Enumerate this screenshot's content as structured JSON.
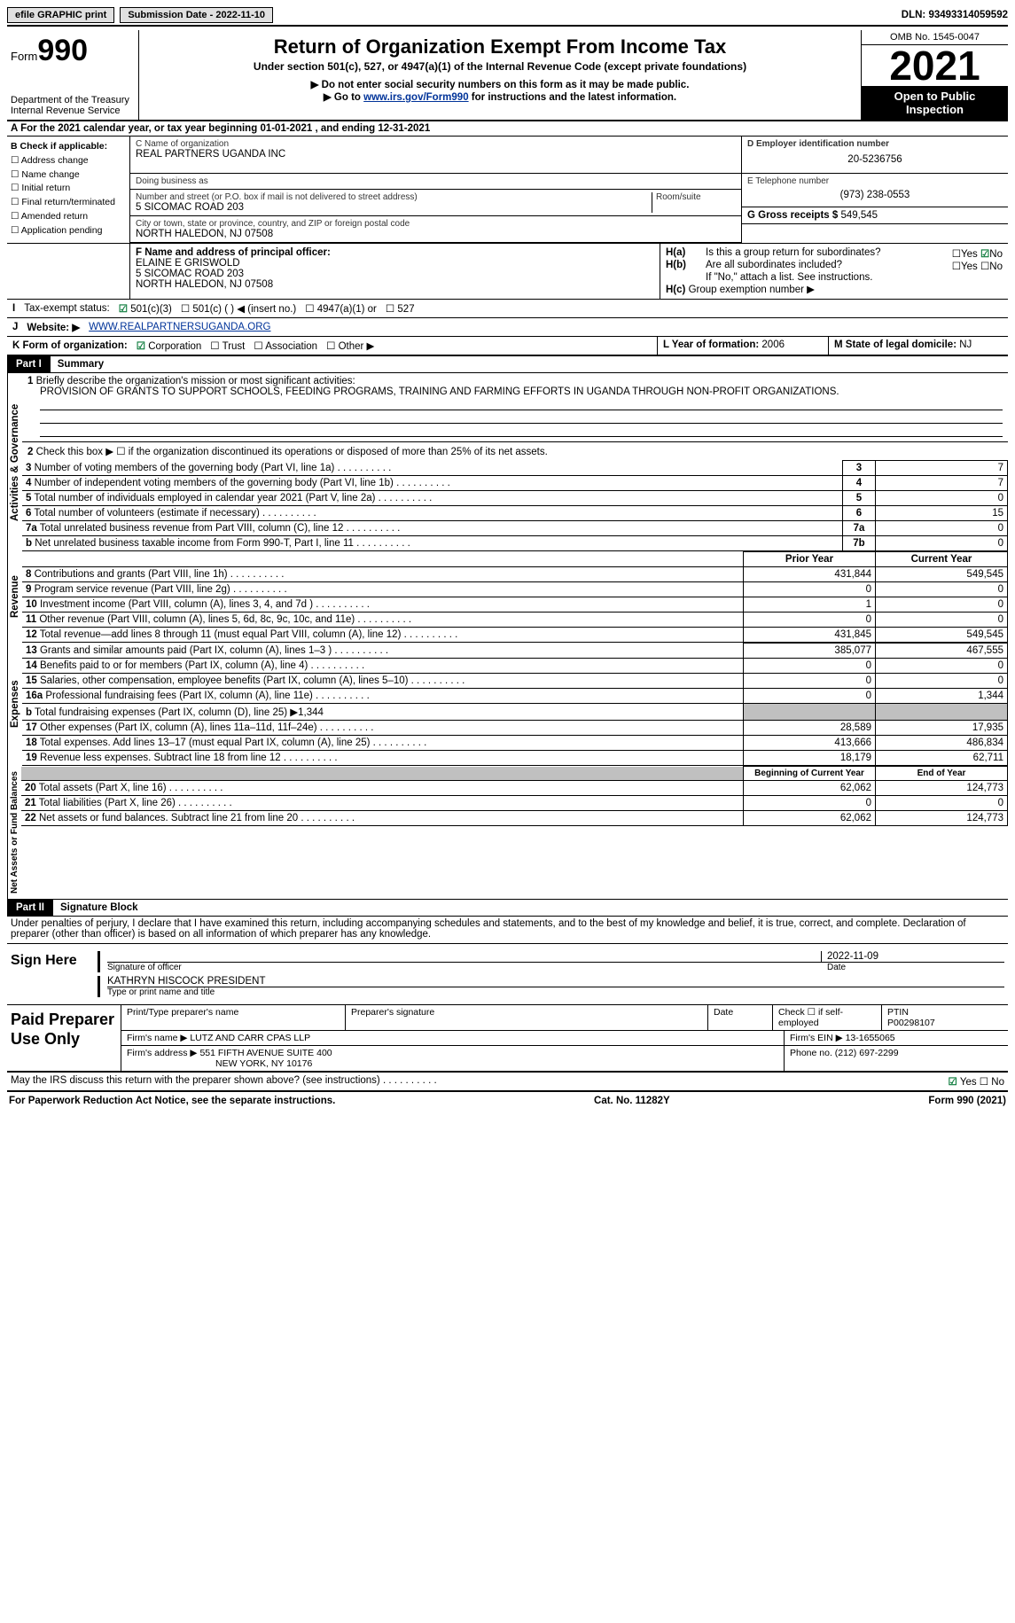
{
  "topbar": {
    "efile": "efile GRAPHIC",
    "print": "print",
    "sub_label": "Submission Date - ",
    "sub_date": "2022-11-10",
    "dln_label": "DLN: ",
    "dln": "93493314059592"
  },
  "header": {
    "form_prefix": "Form",
    "form_num": "990",
    "dept": "Department of the Treasury",
    "irs": "Internal Revenue Service",
    "title": "Return of Organization Exempt From Income Tax",
    "sub1": "Under section 501(c), 527, or 4947(a)(1) of the Internal Revenue Code (except private foundations)",
    "sub2": "▶ Do not enter social security numbers on this form as it may be made public.",
    "sub3a": "▶ Go to ",
    "sub3_link": "www.irs.gov/Form990",
    "sub3b": " for instructions and the latest information.",
    "omb": "OMB No. 1545-0047",
    "year": "2021",
    "open": "Open to Public Inspection"
  },
  "rowA": {
    "text_a": "A For the 2021 calendar year, or tax year beginning ",
    "begin": "01-01-2021",
    "mid": " , and ending ",
    "end": "12-31-2021"
  },
  "colB": {
    "hdr": "B Check if applicable:",
    "items": [
      "Address change",
      "Name change",
      "Initial return",
      "Final return/terminated",
      "Amended return",
      "Application pending"
    ]
  },
  "colC": {
    "name_lbl": "C Name of organization",
    "name": "REAL PARTNERS UGANDA INC",
    "dba_lbl": "Doing business as",
    "dba": "",
    "addr_lbl": "Number and street (or P.O. box if mail is not delivered to street address)",
    "room_lbl": "Room/suite",
    "addr": "5 SICOMAC ROAD 203",
    "city_lbl": "City or town, state or province, country, and ZIP or foreign postal code",
    "city": "NORTH HALEDON, NJ  07508"
  },
  "colDE": {
    "d_lbl": "D Employer identification number",
    "ein": "20-5236756",
    "e_lbl": "E Telephone number",
    "phone": "(973) 238-0553",
    "g_lbl": "G Gross receipts $ ",
    "gross": "549,545"
  },
  "boxF": {
    "lbl": "F Name and address of principal officer:",
    "l1": "ELAINE E GRISWOLD",
    "l2": "5 SICOMAC ROAD 203",
    "l3": "NORTH HALEDON, NJ  07508"
  },
  "boxH": {
    "ha": "Is this a group return for subordinates?",
    "ha_yes": "Yes",
    "ha_no": "No",
    "hb": "Are all subordinates included?",
    "hb_yes": "Yes",
    "hb_no": "No",
    "hb_note": "If \"No,\" attach a list. See instructions.",
    "hc": "Group exemption number ▶"
  },
  "rowI": {
    "lbl": "I",
    "text": "Tax-exempt status:",
    "o1": "501(c)(3)",
    "o2": "501(c) (  ) ◀ (insert no.)",
    "o3": "4947(a)(1) or",
    "o4": "527"
  },
  "rowJ": {
    "lbl": "J",
    "text": "Website: ▶",
    "url": "WWW.REALPARTNERSUGANDA.ORG"
  },
  "rowK": {
    "lbl": "K Form of organization:",
    "o1": "Corporation",
    "o2": "Trust",
    "o3": "Association",
    "o4": "Other ▶",
    "l_lbl": "L Year of formation: ",
    "l_val": "2006",
    "m_lbl": "M State of legal domicile: ",
    "m_val": "NJ"
  },
  "part1": {
    "num": "Part I",
    "title": "Summary"
  },
  "vert1": "Activities & Governance",
  "vert2": "Revenue",
  "vert3": "Expenses",
  "vert4": "Net Assets or Fund Balances",
  "l1": {
    "n": "1",
    "t": "Briefly describe the organization's mission or most significant activities:",
    "v": "PROVISION OF GRANTS TO SUPPORT SCHOOLS, FEEDING PROGRAMS, TRAINING AND FARMING EFFORTS IN UGANDA THROUGH NON-PROFIT ORGANIZATIONS."
  },
  "l2": {
    "n": "2",
    "t": "Check this box ▶ ☐ if the organization discontinued its operations or disposed of more than 25% of its net assets."
  },
  "lines_gov": [
    {
      "n": "3",
      "t": "Number of voting members of the governing body (Part VI, line 1a)",
      "box": "3",
      "v": "7"
    },
    {
      "n": "4",
      "t": "Number of independent voting members of the governing body (Part VI, line 1b)",
      "box": "4",
      "v": "7"
    },
    {
      "n": "5",
      "t": "Total number of individuals employed in calendar year 2021 (Part V, line 2a)",
      "box": "5",
      "v": "0"
    },
    {
      "n": "6",
      "t": "Total number of volunteers (estimate if necessary)",
      "box": "6",
      "v": "15"
    },
    {
      "n": "7a",
      "t": "Total unrelated business revenue from Part VIII, column (C), line 12",
      "box": "7a",
      "v": "0"
    },
    {
      "n": "b",
      "t": "Net unrelated business taxable income from Form 990-T, Part I, line 11",
      "box": "7b",
      "v": "0"
    }
  ],
  "yrhdr": {
    "prior": "Prior Year",
    "curr": "Current Year"
  },
  "lines_rev": [
    {
      "n": "8",
      "t": "Contributions and grants (Part VIII, line 1h)",
      "p": "431,844",
      "c": "549,545"
    },
    {
      "n": "9",
      "t": "Program service revenue (Part VIII, line 2g)",
      "p": "0",
      "c": "0"
    },
    {
      "n": "10",
      "t": "Investment income (Part VIII, column (A), lines 3, 4, and 7d )",
      "p": "1",
      "c": "0"
    },
    {
      "n": "11",
      "t": "Other revenue (Part VIII, column (A), lines 5, 6d, 8c, 9c, 10c, and 11e)",
      "p": "0",
      "c": "0"
    },
    {
      "n": "12",
      "t": "Total revenue—add lines 8 through 11 (must equal Part VIII, column (A), line 12)",
      "p": "431,845",
      "c": "549,545"
    }
  ],
  "lines_exp": [
    {
      "n": "13",
      "t": "Grants and similar amounts paid (Part IX, column (A), lines 1–3 )",
      "p": "385,077",
      "c": "467,555"
    },
    {
      "n": "14",
      "t": "Benefits paid to or for members (Part IX, column (A), line 4)",
      "p": "0",
      "c": "0"
    },
    {
      "n": "15",
      "t": "Salaries, other compensation, employee benefits (Part IX, column (A), lines 5–10)",
      "p": "0",
      "c": "0"
    },
    {
      "n": "16a",
      "t": "Professional fundraising fees (Part IX, column (A), line 11e)",
      "p": "0",
      "c": "1,344"
    },
    {
      "n": "b",
      "t": "Total fundraising expenses (Part IX, column (D), line 25) ▶1,344",
      "p": "",
      "c": "",
      "grey": true,
      "small": true
    },
    {
      "n": "17",
      "t": "Other expenses (Part IX, column (A), lines 11a–11d, 11f–24e)",
      "p": "28,589",
      "c": "17,935"
    },
    {
      "n": "18",
      "t": "Total expenses. Add lines 13–17 (must equal Part IX, column (A), line 25)",
      "p": "413,666",
      "c": "486,834"
    },
    {
      "n": "19",
      "t": "Revenue less expenses. Subtract line 18 from line 12",
      "p": "18,179",
      "c": "62,711"
    }
  ],
  "nethdr": {
    "beg": "Beginning of Current Year",
    "end": "End of Year"
  },
  "lines_net": [
    {
      "n": "20",
      "t": "Total assets (Part X, line 16)",
      "p": "62,062",
      "c": "124,773"
    },
    {
      "n": "21",
      "t": "Total liabilities (Part X, line 26)",
      "p": "0",
      "c": "0"
    },
    {
      "n": "22",
      "t": "Net assets or fund balances. Subtract line 21 from line 20",
      "p": "62,062",
      "c": "124,773"
    }
  ],
  "part2": {
    "num": "Part II",
    "title": "Signature Block"
  },
  "perjury": "Under penalties of perjury, I declare that I have examined this return, including accompanying schedules and statements, and to the best of my knowledge and belief, it is true, correct, and complete. Declaration of preparer (other than officer) is based on all information of which preparer has any knowledge.",
  "sign": {
    "here": "Sign Here",
    "sig_lbl": "Signature of officer",
    "date": "2022-11-09",
    "date_lbl": "Date",
    "name": "KATHRYN HISCOCK PRESIDENT",
    "name_lbl": "Type or print name and title"
  },
  "paid": {
    "title": "Paid Preparer Use Only",
    "h1": "Print/Type preparer's name",
    "h2": "Preparer's signature",
    "h3": "Date",
    "h4": "Check ☐ if self-employed",
    "h5_lbl": "PTIN",
    "h5": "P00298107",
    "firm_lbl": "Firm's name    ▶",
    "firm": "LUTZ AND CARR CPAS LLP",
    "ein_lbl": "Firm's EIN ▶",
    "ein": "13-1655065",
    "addr_lbl": "Firm's address ▶",
    "addr1": "551 FIFTH AVENUE SUITE 400",
    "addr2": "NEW YORK, NY  10176",
    "ph_lbl": "Phone no. ",
    "ph": "(212) 697-2299"
  },
  "may": {
    "t": "May the IRS discuss this return with the preparer shown above? (see instructions)",
    "yes": "Yes",
    "no": "No"
  },
  "foot": {
    "l": "For Paperwork Reduction Act Notice, see the separate instructions.",
    "c": "Cat. No. 11282Y",
    "r": "Form 990 (2021)"
  }
}
